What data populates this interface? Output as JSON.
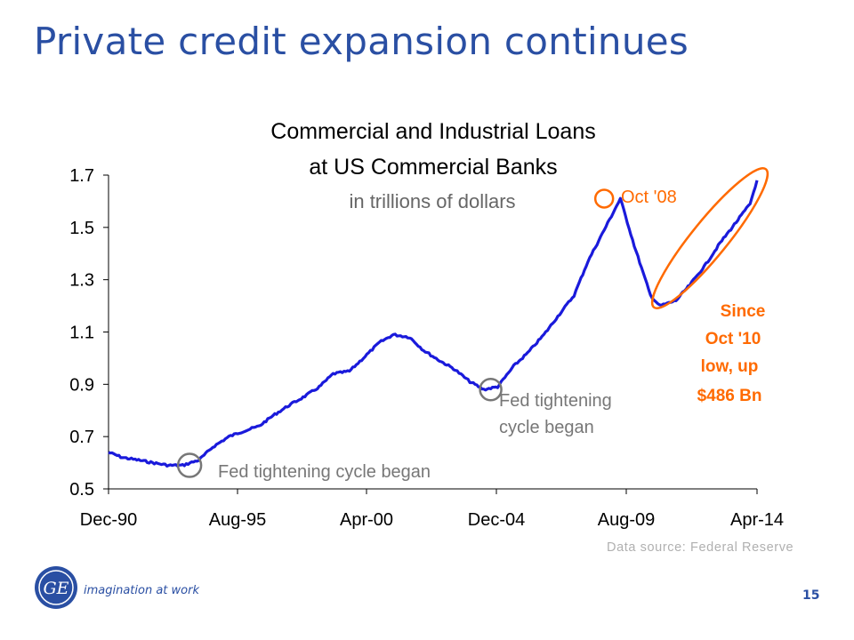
{
  "slide": {
    "title": "Private credit expansion continues",
    "source": "Data source:  Federal Reserve",
    "tagline": "imagination at work",
    "page_number": "15",
    "logo_text": "GE"
  },
  "chart_data": {
    "type": "line",
    "title": "Commercial and Industrial Loans",
    "title_line2": "at US Commercial Banks",
    "subtitle": "in trillions of dollars",
    "xlabel": "",
    "ylabel": "",
    "x_ticks": [
      "Dec-90",
      "Aug-95",
      "Apr-00",
      "Dec-04",
      "Aug-09",
      "Apr-14"
    ],
    "y_ticks": [
      "0.5",
      "0.7",
      "0.9",
      "1.1",
      "1.3",
      "1.5",
      "1.7"
    ],
    "ylim": [
      0.5,
      1.7
    ],
    "xlim": [
      "1990-12",
      "2014-04"
    ],
    "grid": false,
    "series": [
      {
        "color": "#1a1adb",
        "x": [
          "1990-12",
          "1991-06",
          "1992-01",
          "1992-07",
          "1993-02",
          "1993-08",
          "1994-03",
          "1994-09",
          "1995-04",
          "1995-10",
          "1996-05",
          "1996-11",
          "1997-06",
          "1997-12",
          "1998-07",
          "1999-01",
          "1999-08",
          "2000-02",
          "2000-09",
          "2001-03",
          "2001-10",
          "2002-04",
          "2002-11",
          "2003-05",
          "2003-12",
          "2004-06",
          "2004-12",
          "2005-07",
          "2006-01",
          "2006-08",
          "2007-02",
          "2007-09",
          "2008-03",
          "2008-10",
          "2009-05",
          "2009-11",
          "2010-06",
          "2010-10",
          "2011-05",
          "2011-11",
          "2012-06",
          "2012-12",
          "2013-07",
          "2014-01",
          "2014-04"
        ],
        "values": [
          0.64,
          0.62,
          0.61,
          0.6,
          0.59,
          0.59,
          0.61,
          0.66,
          0.7,
          0.72,
          0.74,
          0.78,
          0.82,
          0.85,
          0.89,
          0.94,
          0.95,
          1.0,
          1.06,
          1.09,
          1.08,
          1.03,
          0.99,
          0.96,
          0.91,
          0.88,
          0.89,
          0.97,
          1.02,
          1.09,
          1.16,
          1.24,
          1.37,
          1.49,
          1.61,
          1.43,
          1.24,
          1.2,
          1.22,
          1.28,
          1.36,
          1.44,
          1.52,
          1.59,
          1.68
        ]
      }
    ],
    "annotations": [
      {
        "text": "Fed tightening cycle began",
        "at_x": "1993-11",
        "at_y": 0.59,
        "color": "#777777"
      },
      {
        "text": "Fed tightening",
        "text2": "cycle began",
        "at_x": "2004-09",
        "at_y": 0.88,
        "color": "#777777"
      },
      {
        "text": "Oct '08",
        "at_x": "2008-10",
        "at_y": 1.61,
        "color": "#ff6a00"
      },
      {
        "text": "Since",
        "text2": "Oct '10",
        "text3": "low, up",
        "text4": "$486 Bn",
        "color": "#ff6a00"
      }
    ]
  }
}
